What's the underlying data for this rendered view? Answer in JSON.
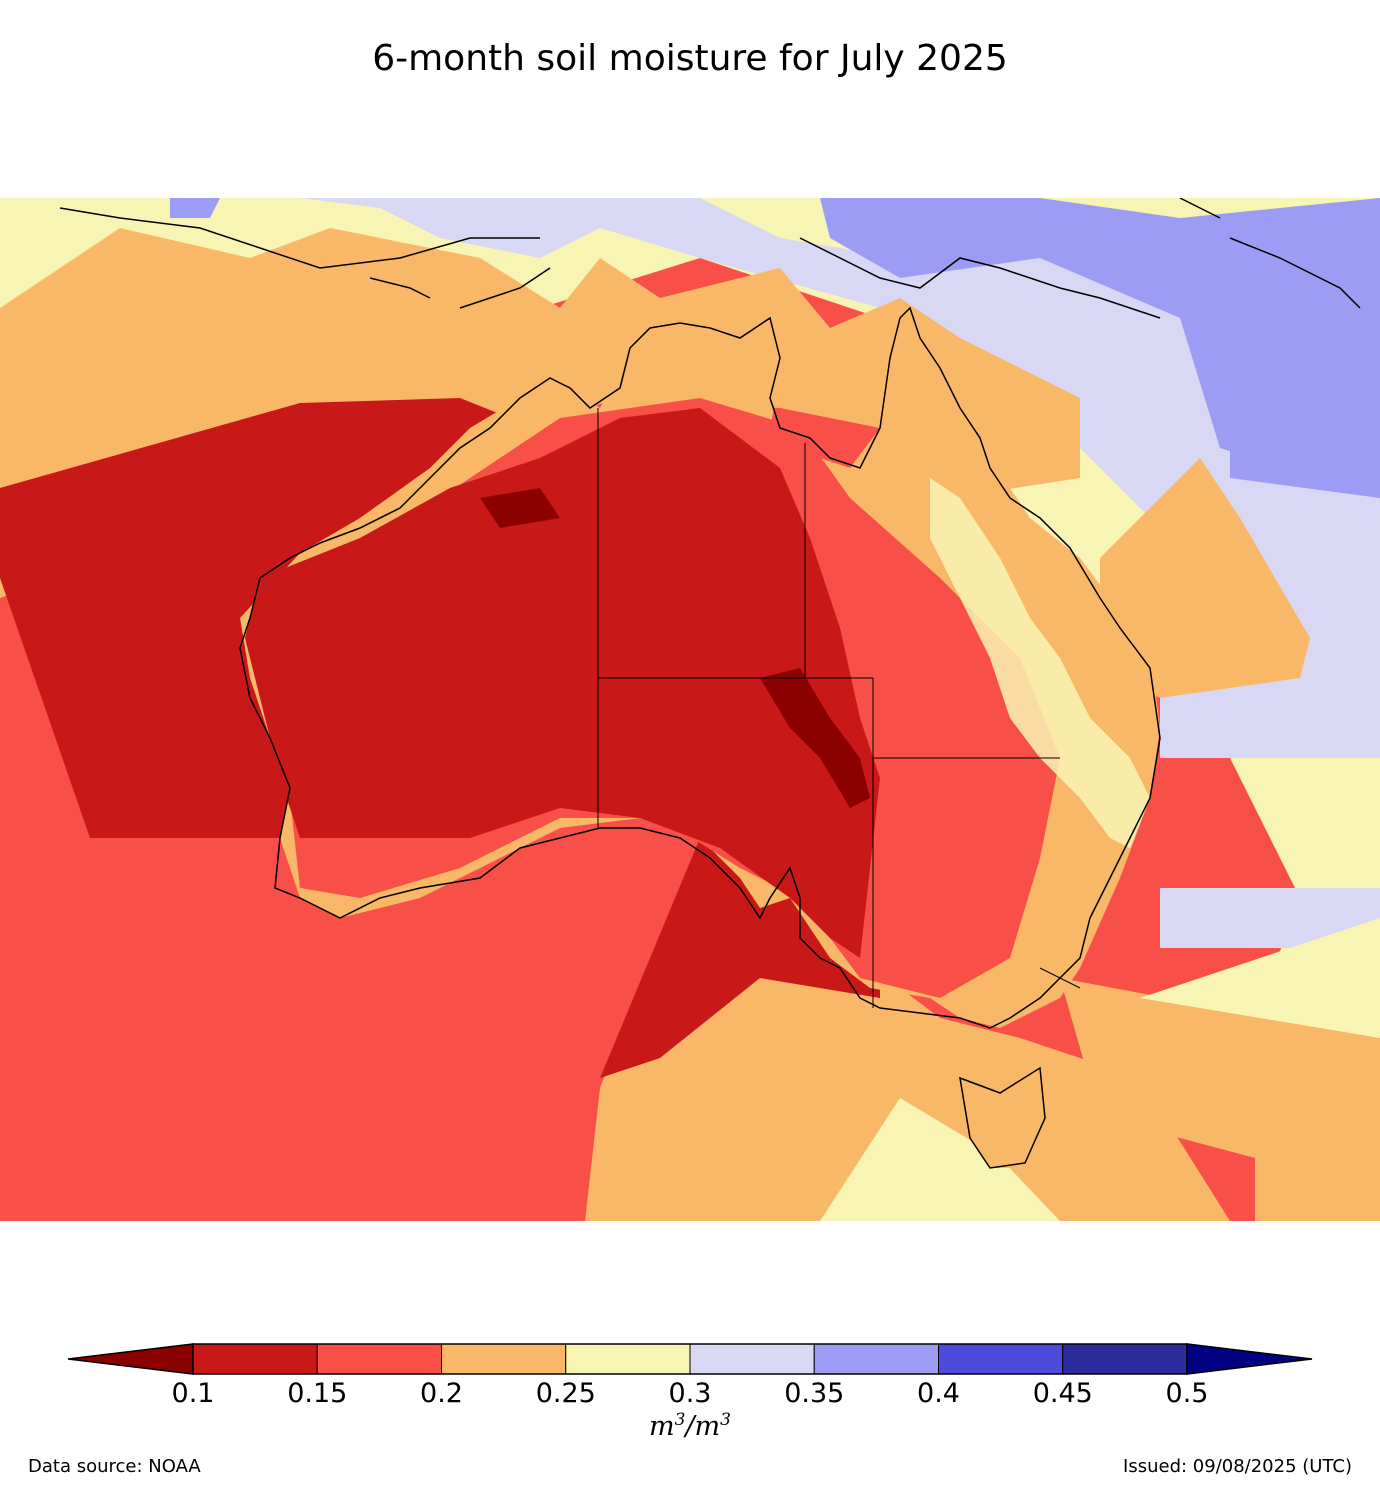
{
  "title": "6-month soil moisture for July 2025",
  "colorbar": {
    "ticks": [
      "0.1",
      "0.15",
      "0.2",
      "0.25",
      "0.3",
      "0.35",
      "0.4",
      "0.45",
      "0.5"
    ],
    "colors": [
      "#8b0000",
      "#c81818",
      "#f85048",
      "#f8b868",
      "#f8f4b4",
      "#d8d8f4",
      "#9c9cf4",
      "#4c4cdc",
      "#2c2c9c",
      "#000080"
    ],
    "unit_text": "m3/m3",
    "unit_num": "m",
    "unit_exp": "3",
    "unit_sep": "/",
    "unit_den": "m",
    "unit_den_exp": "3"
  },
  "footer": {
    "source": "Data source: NOAA",
    "issued": "Issued: 09/08/2025 (UTC)"
  }
}
